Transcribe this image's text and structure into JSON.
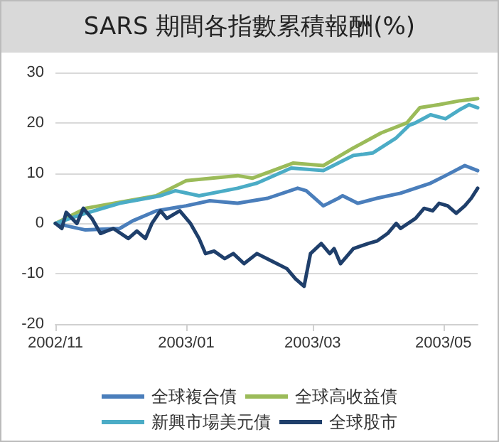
{
  "chart_data": {
    "type": "line",
    "title": "SARS 期間各指數累積報酬(%)",
    "xlim": [
      "2002-11-01",
      "2003-05-17"
    ],
    "xticks": [
      {
        "value": "2002-11-01",
        "label": "2002/11"
      },
      {
        "value": "2003-01-01",
        "label": "2003/01"
      },
      {
        "value": "2003-03-01",
        "label": "2003/03"
      },
      {
        "value": "2003-05-01",
        "label": "2003/05"
      }
    ],
    "ylim": [
      -20,
      30
    ],
    "yticks": [
      -20,
      -10,
      0,
      10,
      20,
      30
    ],
    "grid": "y",
    "legend": "bottom",
    "marker": "none",
    "line_style": "solid",
    "series": [
      {
        "name": "全球複合債",
        "color": "#4a7ebb",
        "x": [
          "2002-11-01",
          "2002-11-15",
          "2002-12-01",
          "2002-12-07",
          "2002-12-18",
          "2003-01-01",
          "2003-01-12",
          "2003-01-25",
          "2003-02-08",
          "2003-02-22",
          "2003-02-26",
          "2003-03-06",
          "2003-03-13",
          "2003-03-15",
          "2003-03-22",
          "2003-03-31",
          "2003-04-11",
          "2003-04-25",
          "2003-05-02",
          "2003-05-11",
          "2003-05-17"
        ],
        "values": [
          0,
          -1.3,
          -1,
          0.5,
          2.5,
          3.5,
          4.5,
          4,
          5,
          7,
          6.5,
          3.5,
          5,
          5.5,
          4,
          5,
          6,
          8,
          9.5,
          11.5,
          10.5
        ]
      },
      {
        "name": "全球高收益債",
        "color": "#9bbb59",
        "x": [
          "2002-11-01",
          "2002-11-15",
          "2002-12-18",
          "2003-01-01",
          "2003-01-25",
          "2003-02-01",
          "2003-02-20",
          "2003-03-06",
          "2003-03-20",
          "2003-04-02",
          "2003-04-14",
          "2003-04-16",
          "2003-04-20",
          "2003-04-29",
          "2003-05-09",
          "2003-05-17"
        ],
        "values": [
          0,
          3,
          5.5,
          8.5,
          9.5,
          9,
          12,
          11.5,
          15,
          18,
          20,
          21,
          23,
          23.6,
          24.4,
          24.8
        ]
      },
      {
        "name": "新興市場美元債",
        "color": "#4bacc6",
        "x": [
          "2002-11-01",
          "2002-11-15",
          "2002-12-01",
          "2002-12-20",
          "2002-12-27",
          "2003-01-07",
          "2003-01-25",
          "2003-02-03",
          "2003-02-19",
          "2003-03-06",
          "2003-03-20",
          "2003-03-29",
          "2003-04-09",
          "2003-04-15",
          "2003-04-18",
          "2003-04-25",
          "2003-05-02",
          "2003-05-09",
          "2003-05-13",
          "2003-05-17"
        ],
        "values": [
          0,
          2,
          4,
          5.5,
          6.5,
          5.5,
          7,
          8,
          11,
          10.5,
          13.5,
          14,
          17,
          19.5,
          20,
          21.6,
          20.8,
          22.7,
          23.6,
          23
        ]
      },
      {
        "name": "全球股市",
        "color": "#1f3f6b",
        "x": [
          "2002-11-01",
          "2002-11-04",
          "2002-11-06",
          "2002-11-11",
          "2002-11-14",
          "2002-11-18",
          "2002-11-22",
          "2002-11-28",
          "2002-12-05",
          "2002-12-09",
          "2002-12-13",
          "2002-12-16",
          "2002-12-20",
          "2002-12-23",
          "2002-12-29",
          "2003-01-03",
          "2003-01-07",
          "2003-01-10",
          "2003-01-14",
          "2003-01-19",
          "2003-01-23",
          "2003-01-28",
          "2003-02-03",
          "2003-02-10",
          "2003-02-17",
          "2003-02-21",
          "2003-02-25",
          "2003-02-28",
          "2003-03-05",
          "2003-03-09",
          "2003-03-11",
          "2003-03-14",
          "2003-03-20",
          "2003-03-27",
          "2003-03-31",
          "2003-04-05",
          "2003-04-09",
          "2003-04-11",
          "2003-04-18",
          "2003-04-22",
          "2003-04-26",
          "2003-04-29",
          "2003-05-03",
          "2003-05-07",
          "2003-05-11",
          "2003-05-14",
          "2003-05-17"
        ],
        "values": [
          0,
          -1,
          2.2,
          0,
          3,
          1,
          -2,
          -1,
          -3,
          -1.5,
          -3,
          0,
          2.5,
          1,
          2.5,
          0,
          -3,
          -6,
          -5.5,
          -7,
          -6,
          -8,
          -6,
          -7.5,
          -9,
          -11,
          -12.5,
          -6,
          -4,
          -6,
          -5,
          -8,
          -5,
          -4,
          -3.5,
          -2,
          0,
          -1,
          1,
          3,
          2.5,
          4,
          3.5,
          2,
          3.5,
          5,
          7
        ]
      }
    ]
  }
}
